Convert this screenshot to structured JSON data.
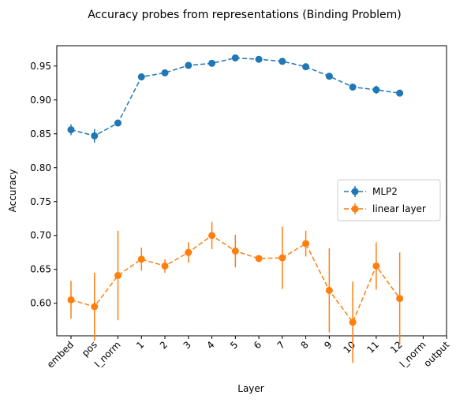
{
  "chart_data": {
    "type": "line",
    "title": "Accuracy probes from representations (Binding Problem)",
    "xlabel": "Layer",
    "ylabel": "Accuracy",
    "categories": [
      "embed",
      "pos",
      "l_norm",
      "1",
      "2",
      "3",
      "4",
      "5",
      "6",
      "7",
      "8",
      "9",
      "10",
      "11",
      "12",
      "l_norm",
      "output"
    ],
    "series": [
      {
        "name": "MLP2",
        "color": "#1f77b4",
        "values": [
          0.856,
          0.847,
          0.866,
          0.934,
          0.94,
          0.951,
          0.954,
          0.962,
          0.96,
          0.957,
          0.949,
          0.935,
          0.919,
          0.915,
          0.91,
          null,
          null
        ],
        "errors": [
          0.008,
          0.01,
          0.004,
          0.004,
          0.003,
          0.003,
          0.003,
          0.003,
          0.003,
          0.003,
          0.003,
          0.004,
          0.004,
          0.006,
          0.003,
          null,
          null
        ]
      },
      {
        "name": "linear layer",
        "color": "#ff7f0e",
        "values": [
          0.605,
          0.595,
          0.641,
          0.665,
          0.655,
          0.675,
          0.7,
          0.677,
          0.666,
          0.667,
          0.688,
          0.619,
          0.572,
          0.655,
          0.607,
          null,
          null
        ],
        "errors": [
          0.028,
          0.05,
          0.066,
          0.017,
          0.01,
          0.015,
          0.02,
          0.024,
          0.004,
          0.046,
          0.019,
          0.062,
          0.06,
          0.035,
          0.068,
          null,
          null
        ]
      }
    ],
    "ylim": [
      0.552,
      0.98
    ],
    "yticks": [
      {
        "value": 0.6,
        "label": "0.60"
      },
      {
        "value": 0.65,
        "label": "0.65"
      },
      {
        "value": 0.7,
        "label": "0.70"
      },
      {
        "value": 0.75,
        "label": "0.75"
      },
      {
        "value": 0.8,
        "label": "0.80"
      },
      {
        "value": 0.85,
        "label": "0.85"
      },
      {
        "value": 0.9,
        "label": "0.90"
      },
      {
        "value": 0.95,
        "label": "0.95"
      }
    ],
    "grid": false,
    "legend": "center right"
  }
}
